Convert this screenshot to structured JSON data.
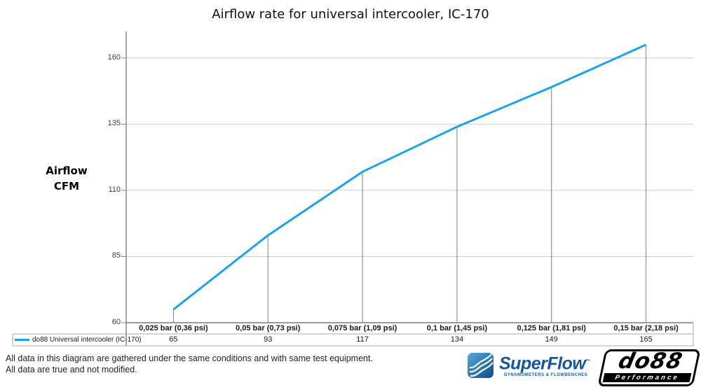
{
  "title": "Airflow rate for universal intercooler, IC-170",
  "chart_data": {
    "type": "line",
    "categories": [
      "0,025 bar (0,36 psi)",
      "0,05 bar (0,73 psi)",
      "0,075 bar (1,09 psi)",
      "0,1 bar (1,45 psi)",
      "0,125 bar (1,81 psi)",
      "0,15 bar (2,18 psi)"
    ],
    "series": [
      {
        "name": "do88 Universal intercooler (IC-170)",
        "values": [
          65,
          93,
          117,
          134,
          149,
          165
        ]
      }
    ],
    "title": "Airflow rate for universal intercooler, IC-170",
    "xlabel": "",
    "ylabel": "Airflow\nCFM",
    "yticks": [
      60,
      85,
      110,
      135,
      160
    ],
    "ylim": [
      60,
      170
    ],
    "grid": true,
    "legend_position": "bottom-left",
    "droplines": true
  },
  "legend": {
    "label": "do88 Universal intercooler (IC-170)"
  },
  "footer": {
    "line1": "All data in this diagram are gathered under the same conditions and with same test equipment.",
    "line2": "All data are true and not modified."
  },
  "logos": {
    "superflow": {
      "name": "SuperFlow",
      "trademark": "™",
      "tagline": "DYNAMOMETERS & FLOWBENCHES"
    },
    "do88": {
      "name": "do88",
      "tagline": "Performance"
    }
  },
  "colors": {
    "line": "#1BA2E8",
    "grid": "#c9c9c9",
    "axis": "#7f7f7f",
    "band_border": "#ababab",
    "superflow_blue": "#15569E",
    "do88_black": "#000000"
  }
}
